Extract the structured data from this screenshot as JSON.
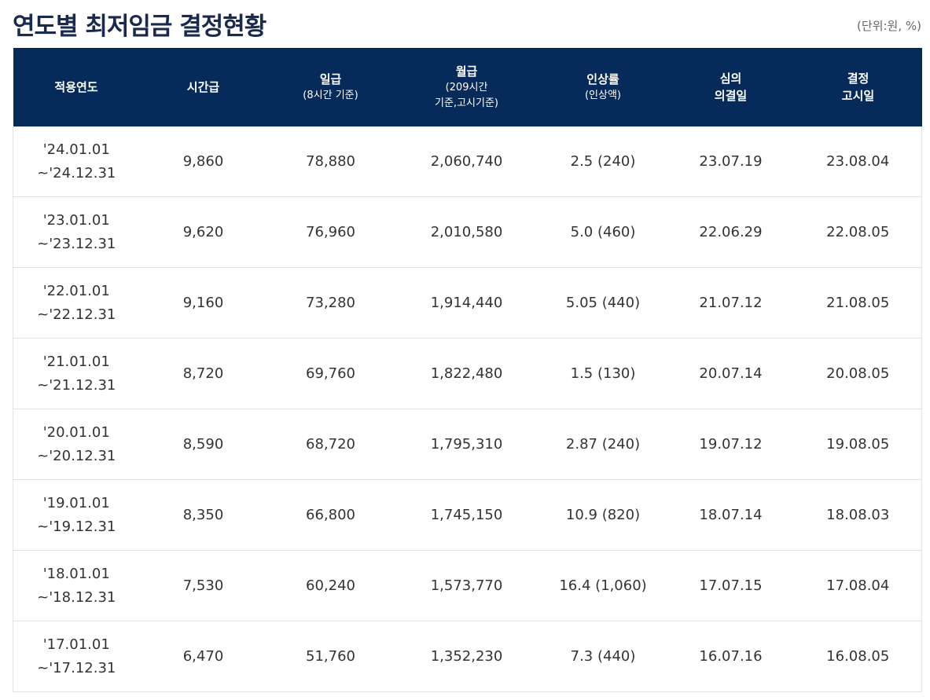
{
  "page": {
    "title": "연도별 최저임금 결정현황",
    "unit_note": "(단위:원, %)"
  },
  "table": {
    "headers": [
      {
        "label": "적용연도",
        "sub": []
      },
      {
        "label": "시간급",
        "sub": []
      },
      {
        "label": "일급",
        "sub": [
          "(8시간 기준)"
        ]
      },
      {
        "label": "월급",
        "sub": [
          "(209시간",
          "기준,고시기준)"
        ]
      },
      {
        "label": "인상률",
        "sub": [
          "(인상액)"
        ]
      },
      {
        "label": "심의",
        "sub": [
          "의결일"
        ],
        "sub_bold": true
      },
      {
        "label": "결정",
        "sub": [
          "고시일"
        ],
        "sub_bold": true
      }
    ],
    "rows": [
      {
        "period_start": "'24.01.01",
        "period_end": "~'24.12.31",
        "hourly": "9,860",
        "daily": "78,880",
        "monthly": "2,060,740",
        "increase": "2.5 (240)",
        "resolution_date": "23.07.19",
        "notice_date": "23.08.04"
      },
      {
        "period_start": "'23.01.01",
        "period_end": "~'23.12.31",
        "hourly": "9,620",
        "daily": "76,960",
        "monthly": "2,010,580",
        "increase": "5.0 (460)",
        "resolution_date": "22.06.29",
        "notice_date": "22.08.05"
      },
      {
        "period_start": "'22.01.01",
        "period_end": "~'22.12.31",
        "hourly": "9,160",
        "daily": "73,280",
        "monthly": "1,914,440",
        "increase": "5.05 (440)",
        "resolution_date": "21.07.12",
        "notice_date": "21.08.05"
      },
      {
        "period_start": "'21.01.01",
        "period_end": "~'21.12.31",
        "hourly": "8,720",
        "daily": "69,760",
        "monthly": "1,822,480",
        "increase": "1.5 (130)",
        "resolution_date": "20.07.14",
        "notice_date": "20.08.05"
      },
      {
        "period_start": "'20.01.01",
        "period_end": "~'20.12.31",
        "hourly": "8,590",
        "daily": "68,720",
        "monthly": "1,795,310",
        "increase": "2.87 (240)",
        "resolution_date": "19.07.12",
        "notice_date": "19.08.05"
      },
      {
        "period_start": "'19.01.01",
        "period_end": "~'19.12.31",
        "hourly": "8,350",
        "daily": "66,800",
        "monthly": "1,745,150",
        "increase": "10.9 (820)",
        "resolution_date": "18.07.14",
        "notice_date": "18.08.03"
      },
      {
        "period_start": "'18.01.01",
        "period_end": "~'18.12.31",
        "hourly": "7,530",
        "daily": "60,240",
        "monthly": "1,573,770",
        "increase": "16.4 (1,060)",
        "resolution_date": "17.07.15",
        "notice_date": "17.08.04"
      },
      {
        "period_start": "'17.01.01",
        "period_end": "~'17.12.31",
        "hourly": "6,470",
        "daily": "51,760",
        "monthly": "1,352,230",
        "increase": "7.3 (440)",
        "resolution_date": "16.07.16",
        "notice_date": "16.08.05"
      }
    ]
  },
  "colors": {
    "header_bg": "#062b5a",
    "title_text": "#1a2a4d",
    "body_text": "#333333",
    "divider": "#e3e3e3"
  }
}
